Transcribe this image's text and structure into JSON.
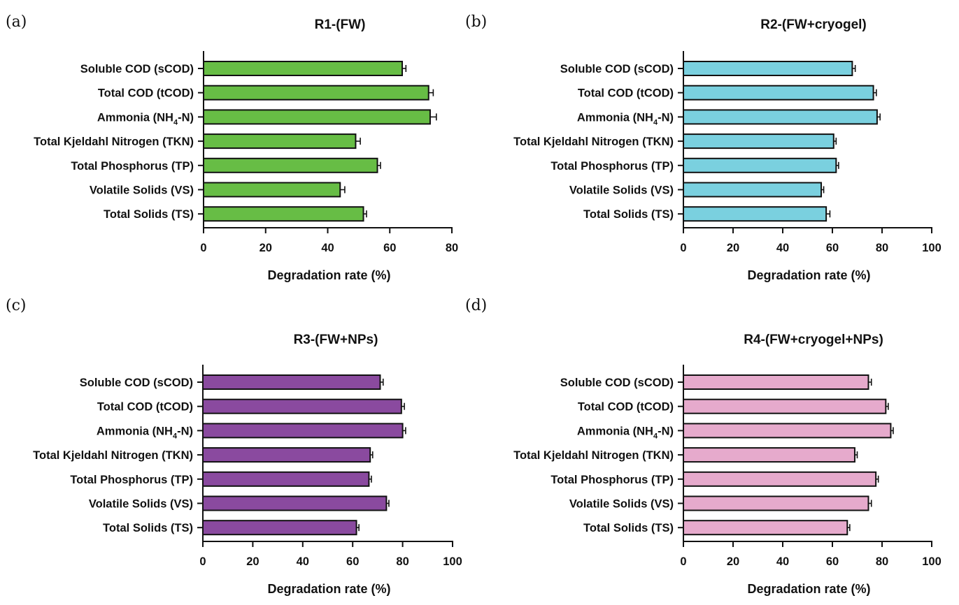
{
  "figure": {
    "panels": [
      {
        "letter": "(a)",
        "title": "R1-(FW)",
        "color": "#67bd45"
      },
      {
        "letter": "(b)",
        "title": "R2-(FW+cryogel)",
        "color": "#7ad0df"
      },
      {
        "letter": "(c)",
        "title": "R3-(FW+NPs)",
        "color": "#8a4a9f"
      },
      {
        "letter": "(d)",
        "title": "R4-(FW+cryogel+NPs)",
        "color": "#e6aacc"
      }
    ]
  },
  "chart_data": [
    {
      "type": "bar",
      "orientation": "horizontal",
      "panel": "(a)",
      "title": "R1-(FW)",
      "categories": [
        "Soluble COD (sCOD)",
        "Total COD (tCOD)",
        "Ammonia (NH4-N)",
        "Total Kjeldahl Nitrogen (TKN)",
        "Total Phosphorus (TP)",
        "Volatile Solids (VS)",
        "Total Solids (TS)"
      ],
      "values": [
        64,
        72.5,
        73,
        49,
        56,
        44,
        51.5
      ],
      "errors": [
        1.2,
        1.5,
        2.0,
        1.5,
        1.0,
        1.5,
        1.0
      ],
      "xlabel": "Degradation rate (%)",
      "xlim": [
        0,
        80
      ],
      "xticks": [
        0,
        20,
        40,
        60,
        80
      ],
      "grid": false
    },
    {
      "type": "bar",
      "orientation": "horizontal",
      "panel": "(b)",
      "title": "R2-(FW+cryogel)",
      "categories": [
        "Soluble COD (sCOD)",
        "Total COD (tCOD)",
        "Ammonia (NH4-N)",
        "Total Kjeldahl Nitrogen (TKN)",
        "Total Phosphorus (TP)",
        "Volatile Solids (VS)",
        "Total Solids (TS)"
      ],
      "values": [
        68,
        76.5,
        78,
        60.5,
        61.5,
        55.5,
        57.5
      ],
      "errors": [
        1.2,
        1.2,
        1.2,
        1.0,
        1.0,
        1.0,
        1.5
      ],
      "xlabel": "Degradation rate (%)",
      "xlim": [
        0,
        100
      ],
      "xticks": [
        0,
        20,
        40,
        60,
        80,
        100
      ],
      "grid": false
    },
    {
      "type": "bar",
      "orientation": "horizontal",
      "panel": "(c)",
      "title": "R3-(FW+NPs)",
      "categories": [
        "Soluble COD (sCOD)",
        "Total COD (tCOD)",
        "Ammonia (NH4-N)",
        "Total Kjeldahl Nitrogen (TKN)",
        "Total Phosphorus (TP)",
        "Volatile Solids (VS)",
        "Total Solids (TS)"
      ],
      "values": [
        71,
        79.5,
        80,
        67,
        66.5,
        73.5,
        61.5
      ],
      "errors": [
        1.2,
        1.2,
        1.2,
        1.0,
        1.0,
        1.0,
        1.0
      ],
      "xlabel": "Degradation rate (%)",
      "xlim": [
        0,
        100
      ],
      "xticks": [
        0,
        20,
        40,
        60,
        80,
        100
      ],
      "grid": false
    },
    {
      "type": "bar",
      "orientation": "horizontal",
      "panel": "(d)",
      "title": "R4-(FW+cryogel+NPs)",
      "categories": [
        "Soluble COD (sCOD)",
        "Total COD (tCOD)",
        "Ammonia (NH4-N)",
        "Total Kjeldahl Nitrogen (TKN)",
        "Total Phosphorus (TP)",
        "Volatile Solids (VS)",
        "Total Solids (TS)"
      ],
      "values": [
        74.5,
        81.5,
        83.5,
        69,
        77.5,
        74.5,
        66
      ],
      "errors": [
        1.2,
        1.0,
        1.0,
        1.0,
        1.0,
        1.2,
        1.0
      ],
      "xlabel": "Degradation rate (%)",
      "xlim": [
        0,
        100
      ],
      "xticks": [
        0,
        20,
        40,
        60,
        80,
        100
      ],
      "grid": false
    }
  ]
}
